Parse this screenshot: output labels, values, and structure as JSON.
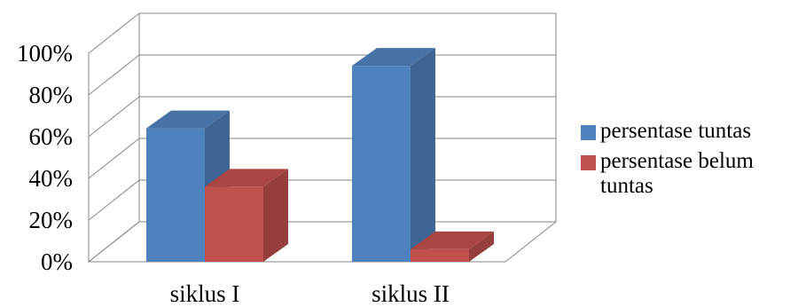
{
  "chart_data": {
    "type": "bar",
    "categories": [
      "siklus I",
      "siklus II"
    ],
    "series": [
      {
        "name": "persentase tuntas",
        "values": [
          64,
          94
        ],
        "color": "#4f81bd"
      },
      {
        "name": "persentase belum tuntas",
        "values": [
          36,
          6
        ],
        "color": "#c0504d"
      }
    ],
    "y_ticks": [
      "0%",
      "20%",
      "40%",
      "60%",
      "80%",
      "100%"
    ],
    "ylim": [
      0,
      100
    ],
    "y_unit": "%",
    "grid": true,
    "style": "3d-clustered-column",
    "legend_position": "right",
    "title": "",
    "xlabel": "",
    "ylabel": ""
  }
}
